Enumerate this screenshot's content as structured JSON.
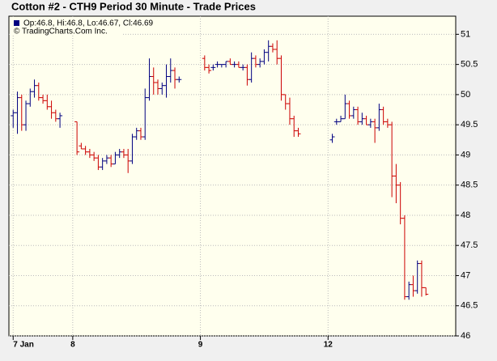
{
  "chart_data": {
    "type": "ohlc",
    "title": "Cotton #2 - CTH9 Period 30 Minute - Trade Prices",
    "info": "Op:46.8, Hi:46.8, Lo:46.67, Cl:46.69",
    "info_color": "#000080",
    "copyright": "© TradingCharts.Com Inc.",
    "up_color": "#000080",
    "down_color": "#cc0000",
    "grid": true,
    "xlim": [
      -1,
      104
    ],
    "xticks": [
      {
        "value": 0,
        "label": "7 Jan"
      },
      {
        "value": 14,
        "label": "8"
      },
      {
        "value": 44,
        "label": "9"
      },
      {
        "value": 74,
        "label": "12"
      }
    ],
    "ylim": [
      46,
      51.3
    ],
    "yticks": [
      46,
      46.5,
      47,
      47.5,
      48,
      48.5,
      49,
      49.5,
      50,
      50.5,
      51
    ],
    "x": [
      0,
      1,
      2,
      3,
      4,
      5,
      6,
      7,
      8,
      9,
      10,
      11,
      15,
      16,
      17,
      18,
      19,
      20,
      21,
      22,
      23,
      24,
      25,
      26,
      27,
      28,
      29,
      30,
      31,
      32,
      33,
      34,
      35,
      36,
      37,
      38,
      39,
      45,
      46,
      47,
      48,
      49,
      50,
      51,
      52,
      53,
      54,
      55,
      56,
      57,
      58,
      59,
      60,
      61,
      62,
      63,
      64,
      65,
      66,
      67,
      75,
      76,
      77,
      78,
      79,
      80,
      81,
      82,
      83,
      84,
      85,
      86,
      87,
      88,
      89,
      90,
      91,
      92,
      93,
      94,
      95,
      96,
      97
    ],
    "open": [
      49.65,
      49.7,
      49.95,
      49.5,
      49.85,
      50.05,
      50.15,
      49.95,
      49.9,
      49.8,
      49.7,
      49.6,
      49.55,
      49.15,
      49.1,
      49.05,
      49.0,
      48.95,
      48.8,
      48.9,
      48.95,
      48.85,
      49.0,
      49.05,
      49.0,
      48.9,
      49.3,
      49.4,
      49.3,
      49.95,
      50.3,
      50.2,
      50.1,
      50.15,
      50.3,
      50.4,
      50.25,
      50.6,
      50.45,
      50.45,
      50.5,
      50.5,
      50.5,
      50.55,
      50.5,
      50.5,
      50.45,
      50.45,
      50.25,
      50.6,
      50.5,
      50.55,
      50.7,
      50.8,
      50.75,
      50.6,
      50.0,
      49.85,
      49.6,
      49.4,
      49.25,
      49.55,
      49.55,
      49.6,
      49.85,
      49.65,
      49.75,
      49.55,
      49.6,
      49.5,
      49.55,
      49.45,
      49.75,
      49.55,
      49.5,
      48.65,
      48.5,
      47.95,
      46.65,
      46.85,
      46.75,
      47.2,
      46.8
    ],
    "high": [
      49.75,
      50.05,
      50.0,
      49.9,
      50.1,
      50.25,
      50.2,
      50.0,
      50.0,
      49.9,
      49.75,
      49.7,
      49.55,
      49.2,
      49.15,
      49.1,
      49.05,
      49.0,
      48.95,
      49.0,
      49.0,
      49.05,
      49.1,
      49.1,
      49.1,
      49.35,
      49.45,
      49.45,
      50.1,
      50.6,
      50.45,
      50.25,
      50.2,
      50.5,
      50.6,
      50.45,
      50.3,
      50.65,
      50.5,
      50.5,
      50.55,
      50.5,
      50.55,
      50.6,
      50.55,
      50.55,
      50.5,
      50.5,
      50.7,
      50.65,
      50.6,
      50.75,
      50.9,
      50.85,
      50.9,
      50.65,
      50.0,
      49.95,
      49.65,
      49.45,
      49.35,
      49.6,
      49.65,
      50.0,
      49.9,
      49.8,
      49.8,
      49.7,
      49.65,
      49.6,
      49.6,
      49.85,
      49.8,
      49.6,
      49.55,
      48.85,
      48.55,
      48.0,
      46.9,
      47.0,
      47.25,
      47.25,
      46.8
    ],
    "low": [
      49.45,
      49.35,
      49.4,
      49.4,
      49.8,
      49.95,
      49.9,
      49.85,
      49.75,
      49.6,
      49.55,
      49.45,
      49.0,
      49.1,
      49.0,
      48.95,
      48.9,
      48.75,
      48.75,
      48.85,
      48.8,
      48.85,
      48.95,
      48.95,
      48.7,
      48.85,
      49.25,
      49.25,
      49.25,
      49.9,
      50.0,
      50.0,
      50.0,
      49.95,
      50.2,
      50.1,
      50.2,
      50.4,
      50.35,
      50.4,
      50.45,
      50.45,
      50.45,
      50.5,
      50.45,
      50.45,
      50.4,
      50.15,
      50.2,
      50.45,
      50.45,
      50.5,
      50.55,
      50.7,
      50.5,
      49.9,
      49.75,
      49.5,
      49.3,
      49.3,
      49.2,
      49.5,
      49.55,
      49.6,
      49.6,
      49.6,
      49.5,
      49.5,
      49.5,
      49.45,
      49.2,
      49.4,
      49.5,
      49.45,
      48.3,
      48.2,
      47.85,
      46.6,
      46.6,
      46.65,
      46.7,
      46.65,
      46.67
    ],
    "close": [
      49.7,
      49.95,
      49.5,
      49.85,
      50.05,
      50.15,
      49.95,
      49.9,
      49.8,
      49.7,
      49.6,
      49.65,
      49.05,
      49.1,
      49.05,
      49.0,
      48.95,
      48.8,
      48.9,
      48.95,
      48.85,
      49.0,
      49.05,
      49.0,
      48.9,
      49.3,
      49.4,
      49.3,
      49.95,
      50.3,
      50.2,
      50.1,
      50.15,
      50.3,
      50.4,
      50.25,
      50.25,
      50.45,
      50.4,
      50.45,
      50.5,
      50.5,
      50.55,
      50.5,
      50.5,
      50.45,
      50.45,
      50.25,
      50.6,
      50.5,
      50.55,
      50.7,
      50.8,
      50.75,
      50.6,
      50.0,
      49.85,
      49.6,
      49.4,
      49.35,
      49.3,
      49.55,
      49.6,
      49.85,
      49.65,
      49.75,
      49.55,
      49.6,
      49.5,
      49.55,
      49.45,
      49.75,
      49.55,
      49.5,
      48.65,
      48.5,
      47.95,
      46.65,
      46.85,
      46.75,
      47.2,
      46.8,
      46.69
    ]
  }
}
